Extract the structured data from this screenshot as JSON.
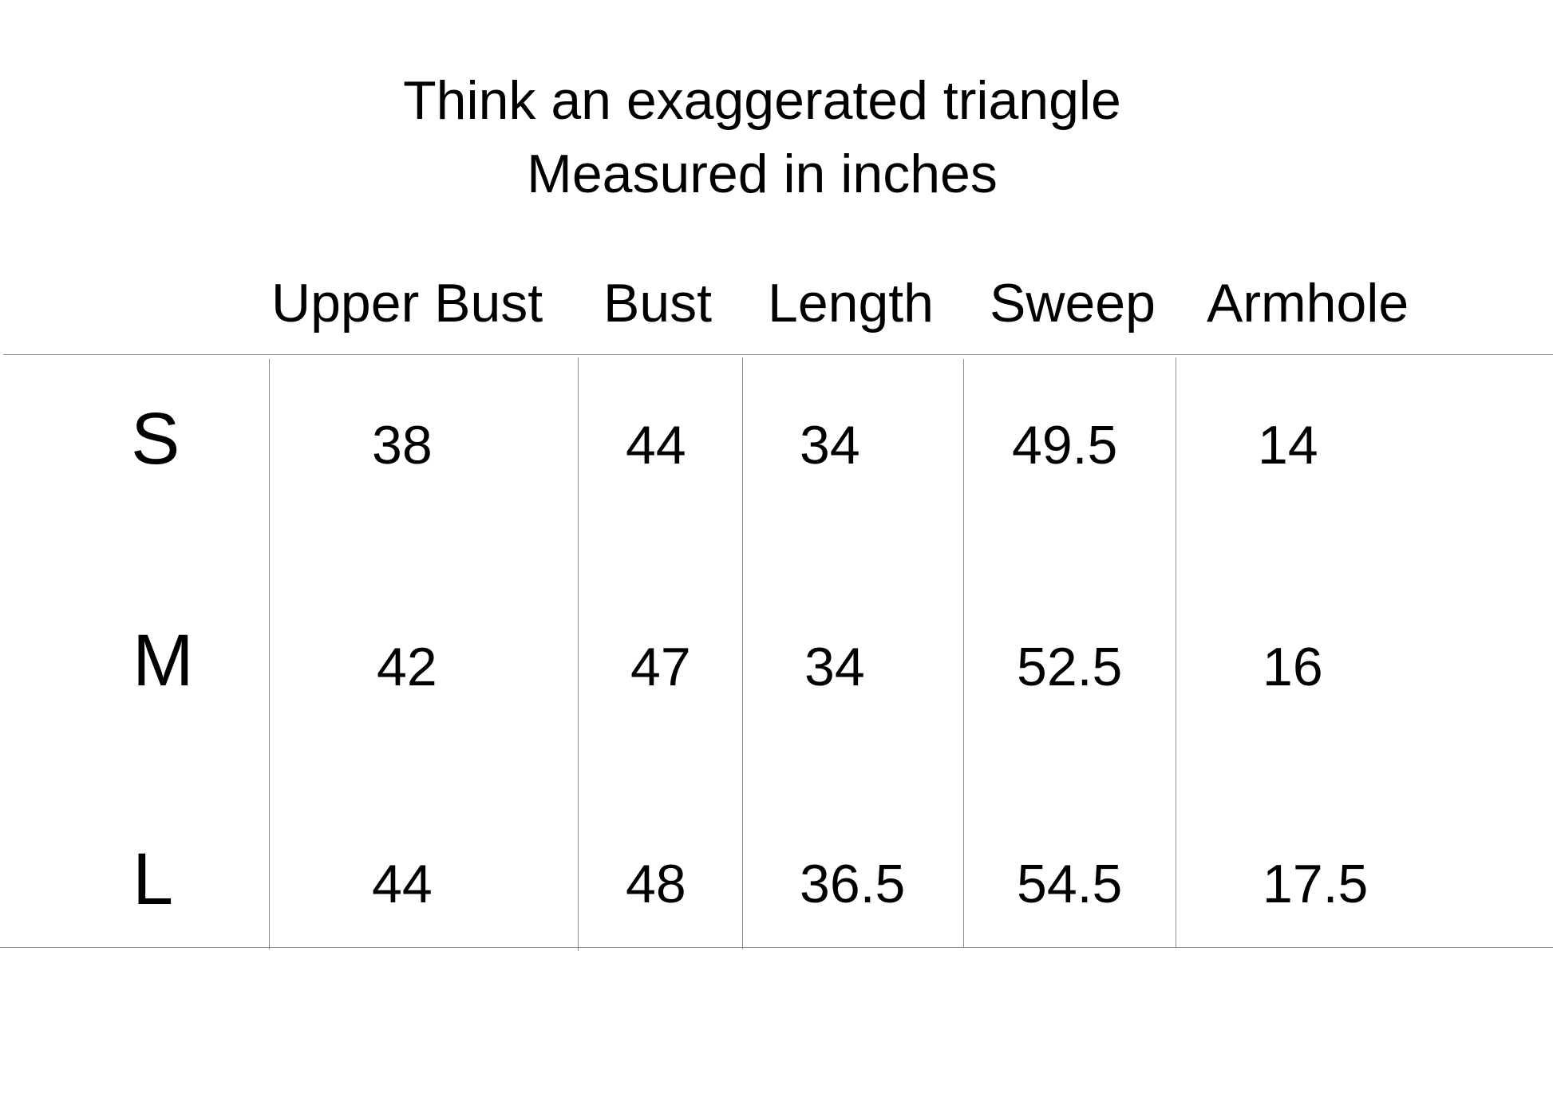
{
  "title": {
    "line1": "Think an exaggerated triangle",
    "line2": "Measured in inches"
  },
  "headers": [
    "Upper Bust",
    "Bust",
    "Length",
    "Sweep",
    "Armhole"
  ],
  "rows": [
    {
      "size": "S",
      "values": [
        "38",
        "44",
        "34",
        "49.5",
        "14"
      ]
    },
    {
      "size": "M",
      "values": [
        "42",
        "47",
        "34",
        "52.5",
        "16"
      ]
    },
    {
      "size": "L",
      "values": [
        "44",
        "48",
        "36.5",
        "54.5",
        "17.5"
      ]
    }
  ],
  "colors": {
    "text": "#000000",
    "rule": "#8c8c8c",
    "background": "#ffffff"
  }
}
